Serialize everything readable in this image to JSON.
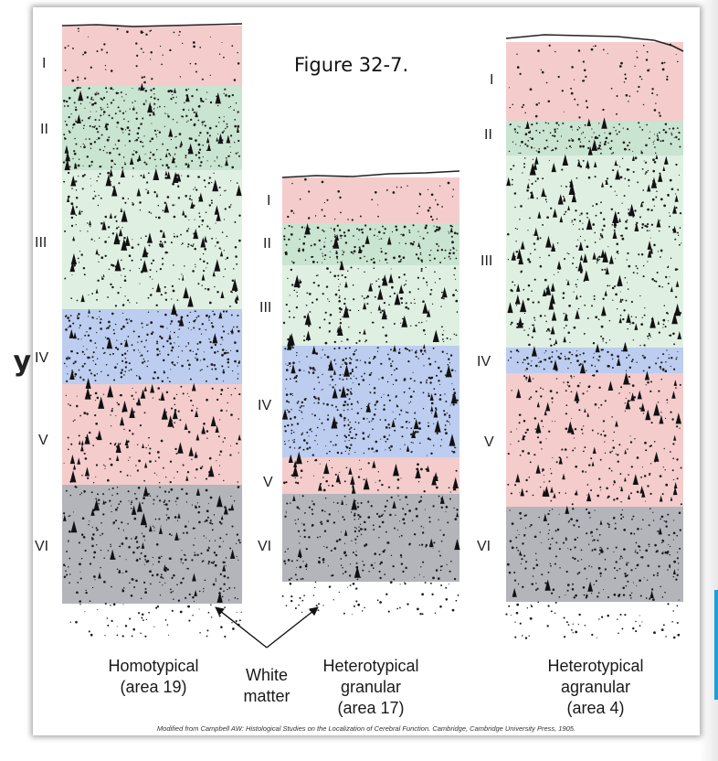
{
  "figure": {
    "title": "Figure 32-7.",
    "source_note": "Modified from Campbell AW: Histological Studies on the Localization of Cerebral Function. Cambridge, Cambridge University Press, 1905.",
    "white_matter_label": [
      "White",
      "matter"
    ],
    "peek_letter": "y"
  },
  "colors": {
    "layer_I": "#f4cccc",
    "layer_II": "#c9e4d0",
    "layer_III": "#dff0e2",
    "layer_IV": "#bccdf0",
    "layer_V": "#f4cccc",
    "layer_VI": "#b3b5bb",
    "white_matter": "#ffffff",
    "accent_blue": "#1b9fdb"
  },
  "columns": [
    {
      "id": "homotypical",
      "caption": [
        "Homotypical",
        "(area 19)"
      ],
      "layers": [
        "I",
        "II",
        "III",
        "IV",
        "V",
        "VI"
      ]
    },
    {
      "id": "granular",
      "caption": [
        "Heterotypical",
        "granular",
        "(area 17)"
      ],
      "layers": [
        "I",
        "II",
        "III",
        "IV",
        "V",
        "VI"
      ]
    },
    {
      "id": "agranular",
      "caption": [
        "Heterotypical",
        "agranular",
        "(area 4)"
      ],
      "layers": [
        "I",
        "II",
        "III",
        "IV",
        "V",
        "VI"
      ]
    }
  ]
}
